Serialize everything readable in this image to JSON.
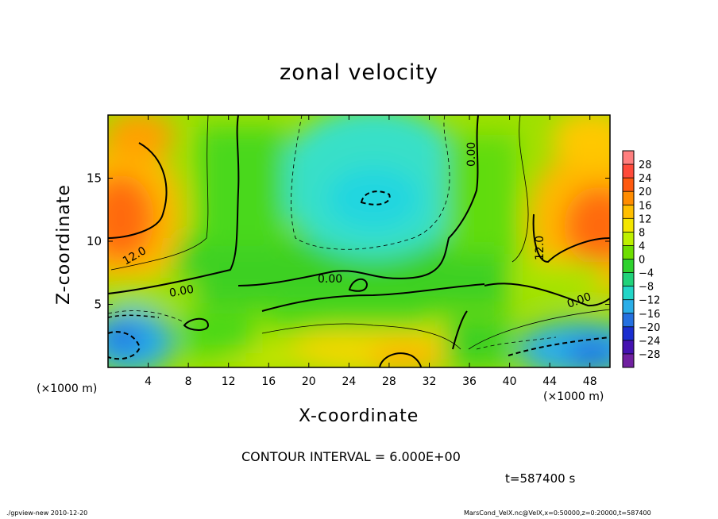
{
  "chart_data": {
    "type": "heatmap",
    "title": "zonal velocity",
    "xlabel": "X-coordinate",
    "ylabel": "Z-coordinate",
    "x_unit_label": "(×1000 m)",
    "z_unit_label": "(×1000 m)",
    "xlim": [
      0,
      50
    ],
    "ylim": [
      0,
      20
    ],
    "x_ticks": [
      "4",
      "8",
      "12",
      "16",
      "20",
      "24",
      "28",
      "32",
      "36",
      "40",
      "44",
      "48"
    ],
    "y_ticks": [
      "5",
      "10",
      "15"
    ],
    "colorbar": {
      "levels": [
        "28",
        "24",
        "20",
        "16",
        "12",
        "8",
        "4",
        "0",
        "−4",
        "−8",
        "−12",
        "−16",
        "−20",
        "−24",
        "−28"
      ],
      "colors": [
        "#ff7f7f",
        "#ff4a3a",
        "#ff5a10",
        "#ff8c00",
        "#ffbf00",
        "#f4e600",
        "#bef000",
        "#6ede00",
        "#2ed22e",
        "#20d27a",
        "#22d6c8",
        "#2aaee8",
        "#2470e0",
        "#1a2ed0",
        "#4412b0",
        "#7020a0"
      ]
    },
    "contour_labels": [
      "12.0",
      "0.00",
      "0.00",
      "0.00",
      "0.00",
      "12.0"
    ],
    "contour_interval": "CONTOUR INTERVAL = 6.000E+00",
    "time": "t=587400 s",
    "grid": false
  },
  "footer": {
    "left": "./gpview-new  2010-12-20",
    "right": "MarsCond_VelX.nc@VelX,x=0:50000,z=0:20000,t=587400"
  }
}
